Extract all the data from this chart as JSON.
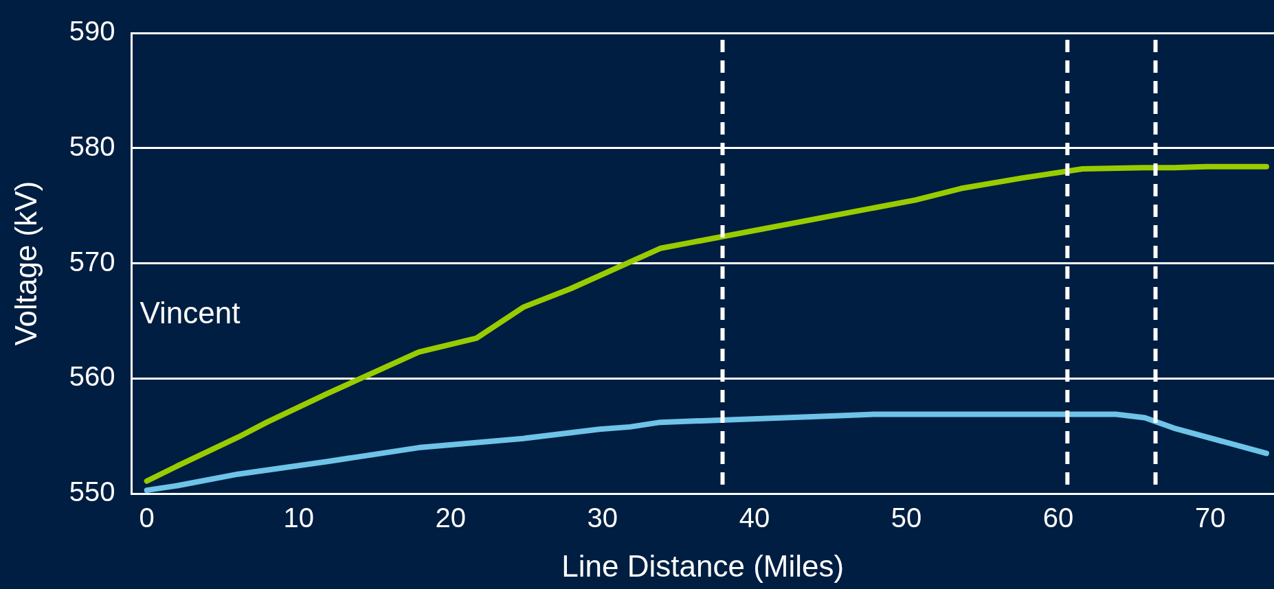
{
  "chart_data": {
    "type": "line",
    "xlabel": "Line Distance (Miles)",
    "ylabel": "Voltage (kV)",
    "annotations": [
      "Vincent"
    ],
    "xlim": [
      -1,
      74.2
    ],
    "xticks": [
      0,
      10,
      20,
      30,
      40,
      50,
      60,
      70
    ],
    "ylim": [
      550,
      590
    ],
    "yticks": [
      550,
      560,
      570,
      580,
      590
    ],
    "grid": "y",
    "legend": false,
    "marker": "none",
    "line_style": "solid",
    "series": [
      {
        "color": "#99cc00",
        "x": [
          0,
          2,
          6,
          7.9,
          11.9,
          17.9,
          21.7,
          24.8,
          27.9,
          33.8,
          35.8,
          50.6,
          53.6,
          57.6,
          61.6,
          65.6,
          67.6,
          69.7,
          73.7
        ],
        "values": [
          551.1,
          552.4,
          554.9,
          556.2,
          558.7,
          562.3,
          563.5,
          566.2,
          567.8,
          571.3,
          571.8,
          575.5,
          576.5,
          577.4,
          578.2,
          578.3,
          578.3,
          578.4,
          578.4
        ]
      },
      {
        "color": "#6ec3e8",
        "x": [
          0,
          2,
          6,
          11.9,
          17.9,
          24.8,
          29.8,
          31.8,
          33.8,
          46.2,
          47.9,
          51.6,
          63.8,
          65.7,
          67.6,
          73.7
        ],
        "values": [
          550.3,
          550.7,
          551.7,
          552.8,
          554.0,
          554.8,
          555.6,
          555.8,
          556.2,
          556.8,
          556.9,
          556.9,
          556.9,
          556.6,
          555.7,
          553.5
        ]
      }
    ],
    "ref_lines": [
      {
        "axis": "x",
        "value": 37.9,
        "color": "#ffffff",
        "line_style": "dashed"
      },
      {
        "axis": "x",
        "value": 60.6,
        "color": "#ffffff",
        "line_style": "dashed"
      },
      {
        "axis": "x",
        "value": 66.4,
        "color": "#ffffff",
        "line_style": "dashed"
      }
    ]
  }
}
